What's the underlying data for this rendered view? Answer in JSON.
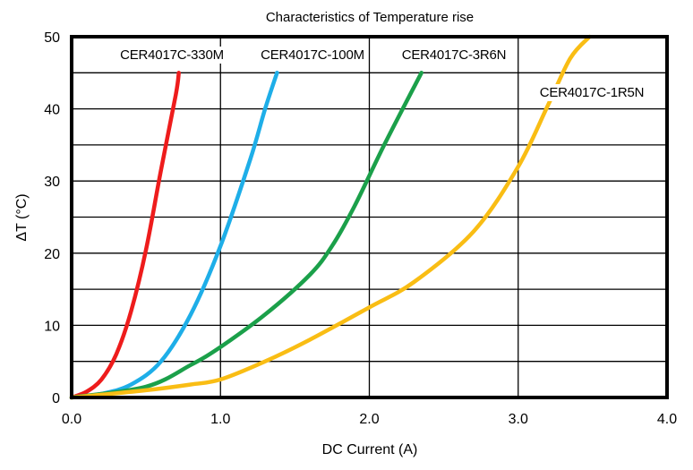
{
  "chart_data": {
    "type": "line",
    "title": "Characteristics of Temperature rise",
    "xlabel": "DC Current (A)",
    "ylabel": "ΔT (°C)",
    "xlim": [
      0,
      4
    ],
    "ylim": [
      0,
      50
    ],
    "x_ticks": [
      "0.0",
      "1.0",
      "2.0",
      "3.0",
      "4.0"
    ],
    "y_ticks": [
      "0",
      "10",
      "20",
      "30",
      "40",
      "50"
    ],
    "grid": true,
    "series": [
      {
        "name": "CER4017C-330M",
        "color": "#ee1c1c",
        "x": [
          0.0,
          0.1,
          0.2,
          0.3,
          0.4,
          0.5,
          0.6,
          0.7,
          0.72
        ],
        "y": [
          0.0,
          0.8,
          2.5,
          6.0,
          12.0,
          20.5,
          31.5,
          42.0,
          45.0
        ]
      },
      {
        "name": "CER4017C-100M",
        "color": "#1eaee8",
        "x": [
          0.0,
          0.2,
          0.4,
          0.6,
          0.8,
          1.0,
          1.2,
          1.3,
          1.38
        ],
        "y": [
          0.0,
          0.5,
          1.8,
          5.0,
          11.5,
          21.0,
          33.0,
          40.0,
          45.0
        ]
      },
      {
        "name": "CER4017C-3R6N",
        "color": "#1ba04a",
        "x": [
          0.0,
          0.5,
          0.8,
          1.0,
          1.3,
          1.6,
          1.75,
          1.9,
          2.1,
          2.35
        ],
        "y": [
          0.0,
          1.5,
          4.5,
          7.0,
          11.5,
          17.0,
          21.0,
          26.5,
          35.0,
          45.0
        ]
      },
      {
        "name": "CER4017C-1R5N",
        "color": "#f9bd14",
        "x": [
          0.0,
          0.5,
          0.8,
          1.0,
          1.3,
          1.6,
          2.0,
          2.3,
          2.7,
          3.0,
          3.2,
          3.35,
          3.48
        ],
        "y": [
          0.0,
          1.0,
          1.8,
          2.5,
          5.0,
          8.0,
          12.5,
          16.0,
          23.0,
          32.0,
          40.5,
          47.0,
          50.0
        ]
      }
    ]
  }
}
